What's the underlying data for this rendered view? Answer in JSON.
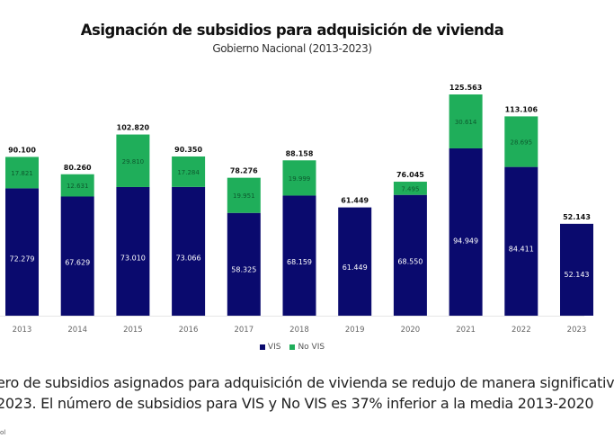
{
  "header": {
    "title": "Asignación de subsidios para adquisición de vivienda",
    "subtitle": "Gobierno Nacional (2013-2023)"
  },
  "legend": [
    {
      "label": "VIS",
      "color": "#0a0a6e"
    },
    {
      "label": "No VIS",
      "color": "#1fae5a"
    }
  ],
  "caption": {
    "line1": "ero de subsidios asignados para adquisición de vivienda se redujo de manera significativ",
    "line2": "2023. El número de subsidios para VIS y No VIS es 37% inferior a la media 2013-2020"
  },
  "source_fragment": "ol",
  "chart_data": {
    "type": "bar",
    "stacked": true,
    "title": "Asignación de subsidios para adquisición de vivienda",
    "subtitle": "Gobierno Nacional (2013-2023)",
    "xlabel": "",
    "ylabel": "",
    "grid": false,
    "legend_position": "bottom-center",
    "categories": [
      "2013",
      "2014",
      "2015",
      "2016",
      "2017",
      "2018",
      "2019",
      "2020",
      "2021",
      "2022",
      "2023"
    ],
    "series": [
      {
        "name": "VIS",
        "color": "#0a0a6e",
        "values": [
          72279,
          67629,
          73010,
          73066,
          58325,
          68159,
          61449,
          68550,
          94949,
          84411,
          52143
        ],
        "labels": [
          "72.279",
          "67.629",
          "73.010",
          "73.066",
          "58.325",
          "68.159",
          "61.449",
          "68.550",
          "94.949",
          "84.411",
          "52.143"
        ]
      },
      {
        "name": "No VIS",
        "color": "#1fae5a",
        "values": [
          17821,
          12631,
          29810,
          17284,
          19951,
          19999,
          0,
          7495,
          30614,
          28695,
          0
        ],
        "labels": [
          "17.821",
          "12.631",
          "29.810",
          "17.284",
          "19.951",
          "19.999",
          "",
          "7.495",
          "30.614",
          "28.695",
          ""
        ]
      }
    ],
    "totals": [
      90100,
      80260,
      102820,
      90350,
      78276,
      88158,
      61449,
      76045,
      125563,
      113106,
      52143
    ],
    "total_labels": [
      "90.100",
      "80.260",
      "102.820",
      "90.350",
      "78.276",
      "88.158",
      "61.449",
      "76.045",
      "125.563",
      "113.106",
      "52.143"
    ],
    "ylim": [
      0,
      130000
    ]
  }
}
